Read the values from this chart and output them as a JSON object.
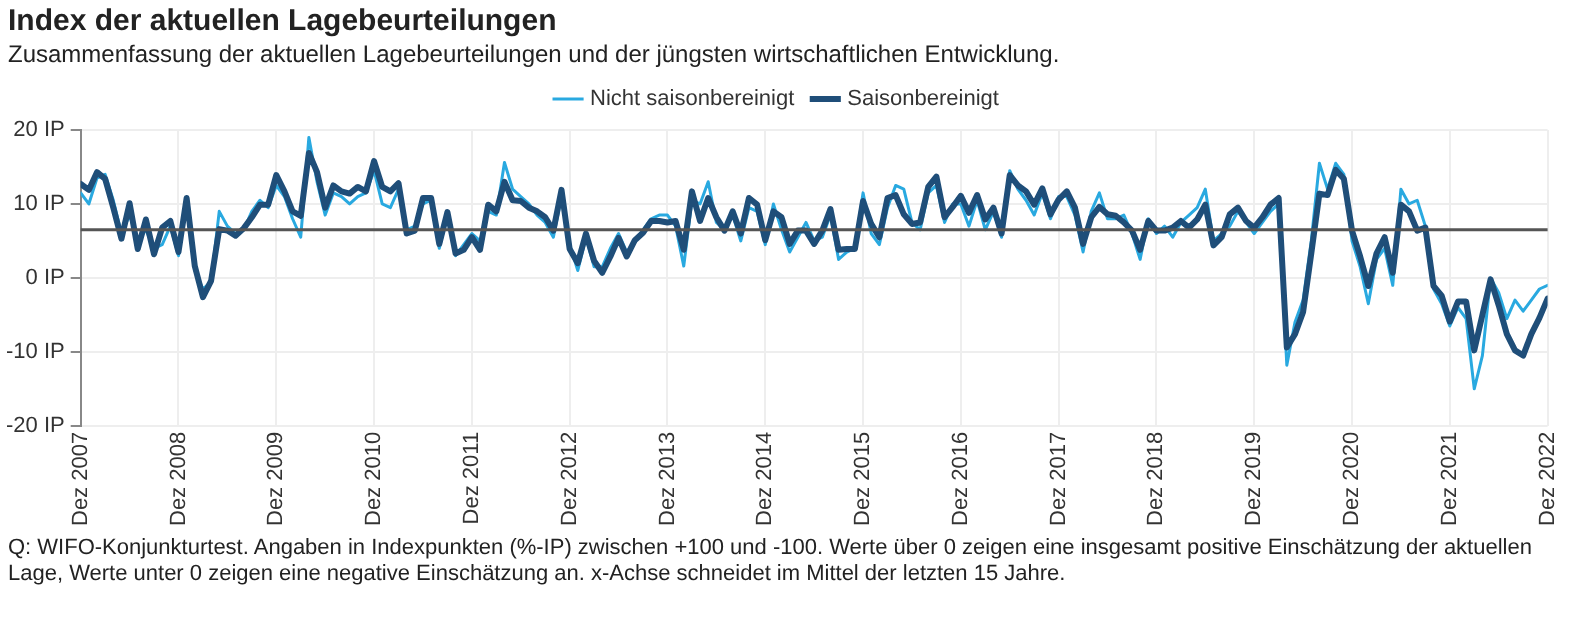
{
  "chart_data": {
    "type": "line",
    "title": "Index der aktuellen Lagebeurteilungen",
    "subtitle": "Zusammenfassung der aktuellen Lagebeurteilungen und der jüngsten wirtschaftlichen Entwicklung.",
    "annotations": [
      "Q: WIFO-Konjunkturtest. Angaben in Indexpunkten (%-IP) zwischen +100 und -100. Werte über 0 zeigen eine insgesamt positive Einschätzung der aktuellen Lage, Werte unter 0 zeigen eine negative Einschätzung an. x-Achse schneidet im Mittel der letzten 15 Jahre."
    ],
    "x": [
      "2007-12",
      "2008-01",
      "2008-02",
      "2008-03",
      "2008-04",
      "2008-05",
      "2008-06",
      "2008-07",
      "2008-08",
      "2008-09",
      "2008-10",
      "2008-11",
      "2008-12",
      "2009-01",
      "2009-02",
      "2009-03",
      "2009-04",
      "2009-05",
      "2009-06",
      "2009-07",
      "2009-08",
      "2009-09",
      "2009-10",
      "2009-11",
      "2009-12",
      "2010-01",
      "2010-02",
      "2010-03",
      "2010-04",
      "2010-05",
      "2010-06",
      "2010-07",
      "2010-08",
      "2010-09",
      "2010-10",
      "2010-11",
      "2010-12",
      "2011-01",
      "2011-02",
      "2011-03",
      "2011-04",
      "2011-05",
      "2011-06",
      "2011-07",
      "2011-08",
      "2011-09",
      "2011-10",
      "2011-11",
      "2011-12",
      "2012-01",
      "2012-02",
      "2012-03",
      "2012-04",
      "2012-05",
      "2012-06",
      "2012-07",
      "2012-08",
      "2012-09",
      "2012-10",
      "2012-11",
      "2012-12",
      "2013-01",
      "2013-02",
      "2013-03",
      "2013-04",
      "2013-05",
      "2013-06",
      "2013-07",
      "2013-08",
      "2013-09",
      "2013-10",
      "2013-11",
      "2013-12",
      "2014-01",
      "2014-02",
      "2014-03",
      "2014-04",
      "2014-05",
      "2014-06",
      "2014-07",
      "2014-08",
      "2014-09",
      "2014-10",
      "2014-11",
      "2014-12",
      "2015-01",
      "2015-02",
      "2015-03",
      "2015-04",
      "2015-05",
      "2015-06",
      "2015-07",
      "2015-08",
      "2015-09",
      "2015-10",
      "2015-11",
      "2015-12",
      "2016-01",
      "2016-02",
      "2016-03",
      "2016-04",
      "2016-05",
      "2016-06",
      "2016-07",
      "2016-08",
      "2016-09",
      "2016-10",
      "2016-11",
      "2016-12",
      "2017-01",
      "2017-02",
      "2017-03",
      "2017-04",
      "2017-05",
      "2017-06",
      "2017-07",
      "2017-08",
      "2017-09",
      "2017-10",
      "2017-11",
      "2017-12",
      "2018-01",
      "2018-02",
      "2018-03",
      "2018-04",
      "2018-05",
      "2018-06",
      "2018-07",
      "2018-08",
      "2018-09",
      "2018-10",
      "2018-11",
      "2018-12",
      "2019-01",
      "2019-02",
      "2019-03",
      "2019-04",
      "2019-05",
      "2019-06",
      "2019-07",
      "2019-08",
      "2019-09",
      "2019-10",
      "2019-11",
      "2019-12",
      "2020-01",
      "2020-02",
      "2020-03",
      "2020-04",
      "2020-05",
      "2020-06",
      "2020-07",
      "2020-08",
      "2020-09",
      "2020-10",
      "2020-11",
      "2020-12",
      "2021-01",
      "2021-02",
      "2021-03",
      "2021-04",
      "2021-05",
      "2021-06",
      "2021-07",
      "2021-08",
      "2021-09",
      "2021-10",
      "2021-11",
      "2021-12",
      "2022-01",
      "2022-02",
      "2022-03",
      "2022-04",
      "2022-05",
      "2022-06",
      "2022-07",
      "2022-08",
      "2022-09",
      "2022-10",
      "2022-11",
      "2022-12"
    ],
    "series": [
      {
        "name": "Nicht saisonbereinigt",
        "color": "#29a9e0",
        "values": [
          11.5,
          10.0,
          13.5,
          14.0,
          10.5,
          6.0,
          8.5,
          5.0,
          6.5,
          4.0,
          4.5,
          7.0,
          3.0,
          10.0,
          1.0,
          -1.5,
          -0.5,
          9.0,
          7.0,
          6.0,
          6.5,
          9.0,
          10.5,
          9.5,
          12.5,
          11.0,
          8.0,
          5.5,
          19.0,
          13.0,
          8.5,
          11.5,
          11.0,
          10.0,
          11.0,
          11.5,
          14.5,
          10.0,
          9.5,
          12.0,
          6.5,
          7.0,
          10.0,
          10.5,
          4.0,
          8.5,
          3.0,
          4.5,
          6.0,
          5.0,
          9.0,
          8.5,
          15.6,
          12.0,
          11.0,
          10.0,
          8.5,
          7.5,
          5.5,
          11.0,
          4.5,
          1.0,
          5.5,
          1.5,
          1.5,
          4.0,
          6.0,
          3.5,
          5.0,
          6.5,
          8.0,
          8.5,
          8.5,
          7.0,
          1.6,
          10.5,
          10.0,
          13.0,
          7.5,
          6.5,
          8.5,
          5.0,
          9.5,
          9.0,
          4.5,
          10.0,
          6.5,
          3.5,
          5.5,
          7.5,
          5.0,
          5.5,
          8.5,
          2.5,
          3.5,
          4.0,
          11.5,
          6.0,
          4.5,
          9.5,
          12.5,
          12.0,
          7.5,
          6.5,
          11.5,
          12.5,
          7.5,
          10.0,
          10.0,
          7.0,
          10.5,
          6.5,
          9.0,
          5.5,
          14.5,
          12.0,
          10.5,
          8.5,
          11.5,
          8.0,
          11.0,
          11.0,
          8.5,
          3.5,
          9.0,
          11.5,
          8.0,
          8.0,
          8.5,
          6.0,
          2.5,
          8.0,
          6.0,
          7.0,
          5.5,
          7.5,
          8.5,
          9.5,
          12.0,
          5.0,
          6.0,
          7.0,
          9.0,
          7.5,
          6.0,
          7.5,
          9.0,
          10.0,
          -11.8,
          -6.0,
          -3.0,
          5.0,
          15.5,
          12.0,
          15.5,
          14.0,
          5.0,
          1.5,
          -3.5,
          2.5,
          4.0,
          -1.0,
          12.0,
          10.0,
          10.5,
          7.0,
          -1.5,
          -3.5,
          -6.5,
          -4.0,
          -5.5,
          -15.0,
          -10.5,
          0.0,
          -2.0,
          -5.5,
          -3.0,
          -4.5,
          -3.0,
          -1.5,
          -1.0
        ]
      },
      {
        "name": "Saisonbereinigt",
        "color": "#1f4e79",
        "values": [
          12.7,
          11.9,
          14.3,
          13.4,
          9.5,
          5.3,
          10.1,
          3.9,
          7.9,
          3.2,
          6.8,
          7.7,
          3.5,
          10.8,
          1.6,
          -2.6,
          -0.4,
          6.6,
          6.4,
          5.7,
          6.7,
          8.2,
          9.9,
          9.9,
          13.9,
          11.7,
          9.0,
          8.4,
          16.9,
          14.3,
          9.5,
          12.5,
          11.7,
          11.4,
          12.3,
          11.7,
          15.8,
          12.3,
          11.7,
          12.8,
          6.0,
          6.4,
          10.8,
          10.8,
          4.6,
          8.9,
          3.3,
          3.8,
          5.5,
          3.8,
          9.9,
          9.0,
          13.0,
          10.5,
          10.4,
          9.5,
          9.0,
          8.2,
          6.4,
          11.9,
          3.9,
          2.0,
          6.0,
          2.3,
          0.7,
          2.9,
          5.4,
          2.9,
          5.1,
          6.1,
          7.7,
          7.7,
          7.5,
          7.7,
          3.8,
          11.7,
          7.7,
          10.8,
          8.2,
          6.4,
          9.0,
          6.0,
          10.8,
          9.9,
          5.1,
          9.0,
          8.2,
          4.6,
          6.4,
          6.4,
          4.6,
          6.4,
          9.3,
          3.8,
          3.9,
          3.9,
          10.4,
          7.3,
          5.5,
          10.8,
          11.2,
          8.6,
          7.3,
          7.5,
          12.3,
          13.7,
          8.2,
          9.6,
          11.1,
          8.8,
          11.2,
          7.9,
          9.5,
          6.0,
          13.9,
          12.5,
          11.7,
          9.9,
          12.1,
          8.6,
          10.6,
          11.7,
          9.5,
          4.6,
          8.2,
          9.6,
          8.6,
          8.4,
          7.5,
          6.4,
          3.8,
          7.7,
          6.4,
          6.4,
          6.8,
          7.7,
          6.8,
          7.9,
          9.9,
          4.4,
          5.5,
          8.6,
          9.5,
          7.7,
          6.8,
          8.2,
          9.9,
          10.8,
          -9.4,
          -7.6,
          -4.6,
          3.3,
          11.4,
          11.2,
          14.6,
          13.4,
          6.4,
          2.9,
          -1.1,
          3.3,
          5.5,
          0.7,
          9.9,
          9.0,
          6.4,
          6.8,
          -1.1,
          -2.4,
          -5.9,
          -3.2,
          -3.2,
          -9.8,
          -5.0,
          -0.2,
          -3.7,
          -7.6,
          -9.8,
          -10.5,
          -7.6,
          -5.4,
          -2.8
        ]
      }
    ],
    "xlim": [
      "2007-12",
      "2022-12"
    ],
    "xticks": [
      {
        "value": "2007-12",
        "label": "Dez 2007"
      },
      {
        "value": "2008-12",
        "label": "Dez 2008"
      },
      {
        "value": "2009-12",
        "label": "Dez 2009"
      },
      {
        "value": "2010-12",
        "label": "Dez 2010"
      },
      {
        "value": "2011-12",
        "label": "Dez 2011"
      },
      {
        "value": "2012-12",
        "label": "Dez 2012"
      },
      {
        "value": "2013-12",
        "label": "Dez 2013"
      },
      {
        "value": "2014-12",
        "label": "Dez 2014"
      },
      {
        "value": "2015-12",
        "label": "Dez 2015"
      },
      {
        "value": "2016-12",
        "label": "Dez 2016"
      },
      {
        "value": "2017-12",
        "label": "Dez 2017"
      },
      {
        "value": "2018-12",
        "label": "Dez 2018"
      },
      {
        "value": "2019-12",
        "label": "Dez 2019"
      },
      {
        "value": "2020-12",
        "label": "Dez 2020"
      },
      {
        "value": "2021-12",
        "label": "Dez 2021"
      },
      {
        "value": "2022-12",
        "label": "Dez 2022"
      }
    ],
    "ylim": [
      -20,
      20
    ],
    "yticks": [
      {
        "value": -20,
        "label": "-20 IP"
      },
      {
        "value": -10,
        "label": "-10 IP"
      },
      {
        "value": 0,
        "label": "0 IP"
      },
      {
        "value": 10,
        "label": "10 IP"
      },
      {
        "value": 20,
        "label": "20 IP"
      }
    ],
    "ref_lines": [
      {
        "axis": "y",
        "value": 6.5,
        "color": "#555555"
      }
    ],
    "grid": true,
    "legend": "top",
    "marker": "none",
    "line_style": "solid"
  }
}
